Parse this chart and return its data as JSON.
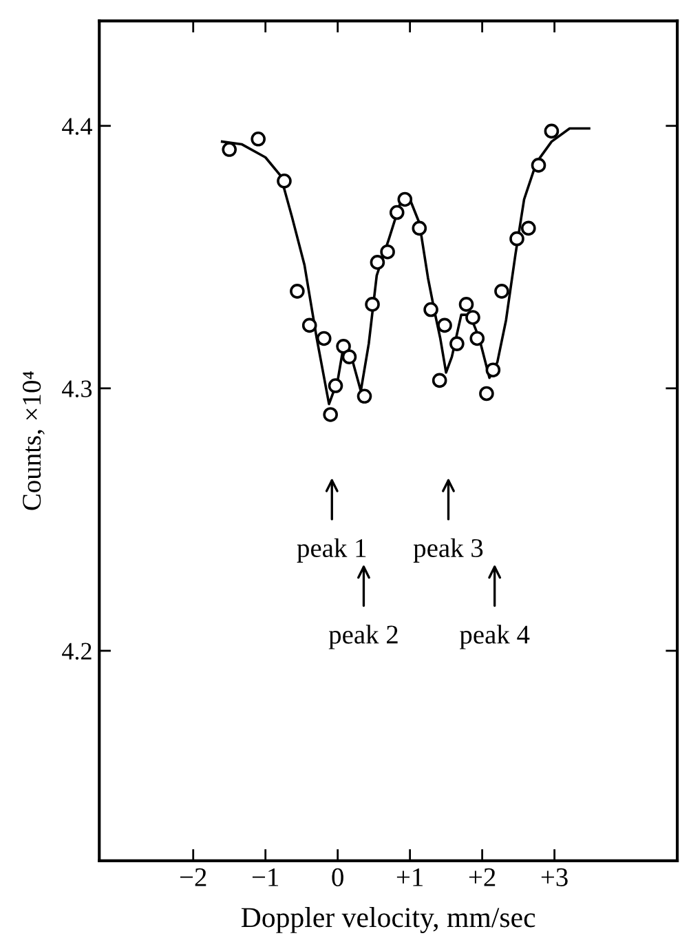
{
  "chart_data": {
    "type": "scatter",
    "xlabel": "Doppler velocity, mm/sec",
    "ylabel": "Counts, ×10⁴",
    "xlim": [
      -3.3,
      4.7
    ],
    "ylim": [
      4.12,
      4.44
    ],
    "xticks": [
      {
        "value": -2,
        "label": "−2"
      },
      {
        "value": -1,
        "label": "−1"
      },
      0,
      {
        "value": 1,
        "label": "+1"
      },
      {
        "value": 2,
        "label": "+2"
      },
      {
        "value": 3,
        "label": "+3"
      }
    ],
    "yticks": [
      4.2,
      4.3,
      4.4
    ],
    "grid": false,
    "legend": false,
    "series": [
      {
        "marker": "circle",
        "color": "#000000",
        "x": [
          -1.5,
          -1.1,
          -0.74,
          -0.56,
          -0.39,
          -0.19,
          -0.1,
          -0.03,
          0.08,
          0.16,
          0.37,
          0.48,
          0.55,
          0.69,
          0.82,
          0.93,
          1.13,
          1.29,
          1.41,
          1.48,
          1.65,
          1.78,
          1.87,
          1.93,
          2.06,
          2.15,
          2.27,
          2.48,
          2.64,
          2.78,
          2.96
        ],
        "values": [
          4.391,
          4.395,
          4.379,
          4.337,
          4.324,
          4.319,
          4.29,
          4.301,
          4.316,
          4.312,
          4.297,
          4.332,
          4.348,
          4.352,
          4.367,
          4.372,
          4.361,
          4.33,
          4.303,
          4.324,
          4.317,
          4.332,
          4.327,
          4.319,
          4.298,
          4.307,
          4.337,
          4.357,
          4.361,
          4.385,
          4.398
        ]
      },
      {
        "type": "line",
        "marker": "none",
        "line_style": "solid",
        "color": "#000000",
        "x": [
          -1.6,
          -1.33,
          -1.0,
          -0.79,
          -0.63,
          -0.46,
          -0.29,
          -0.12,
          0,
          0.08,
          0.19,
          0.32,
          0.43,
          0.54,
          0.71,
          0.87,
          1.0,
          1.13,
          1.25,
          1.35,
          1.42,
          1.5,
          1.58,
          1.71,
          1.83,
          1.96,
          2.1,
          2.21,
          2.33,
          2.46,
          2.58,
          2.75,
          2.96,
          3.21,
          3.48
        ],
        "values": [
          4.394,
          4.393,
          4.388,
          4.381,
          4.365,
          4.347,
          4.319,
          4.294,
          4.303,
          4.316,
          4.312,
          4.299,
          4.317,
          4.343,
          4.357,
          4.371,
          4.372,
          4.363,
          4.342,
          4.328,
          4.319,
          4.306,
          4.312,
          4.328,
          4.328,
          4.319,
          4.304,
          4.31,
          4.326,
          4.351,
          4.372,
          4.386,
          4.394,
          4.399,
          4.399
        ]
      }
    ],
    "annotations": [
      "peak 1",
      "peak 2",
      "peak 3",
      "peak 4"
    ]
  }
}
